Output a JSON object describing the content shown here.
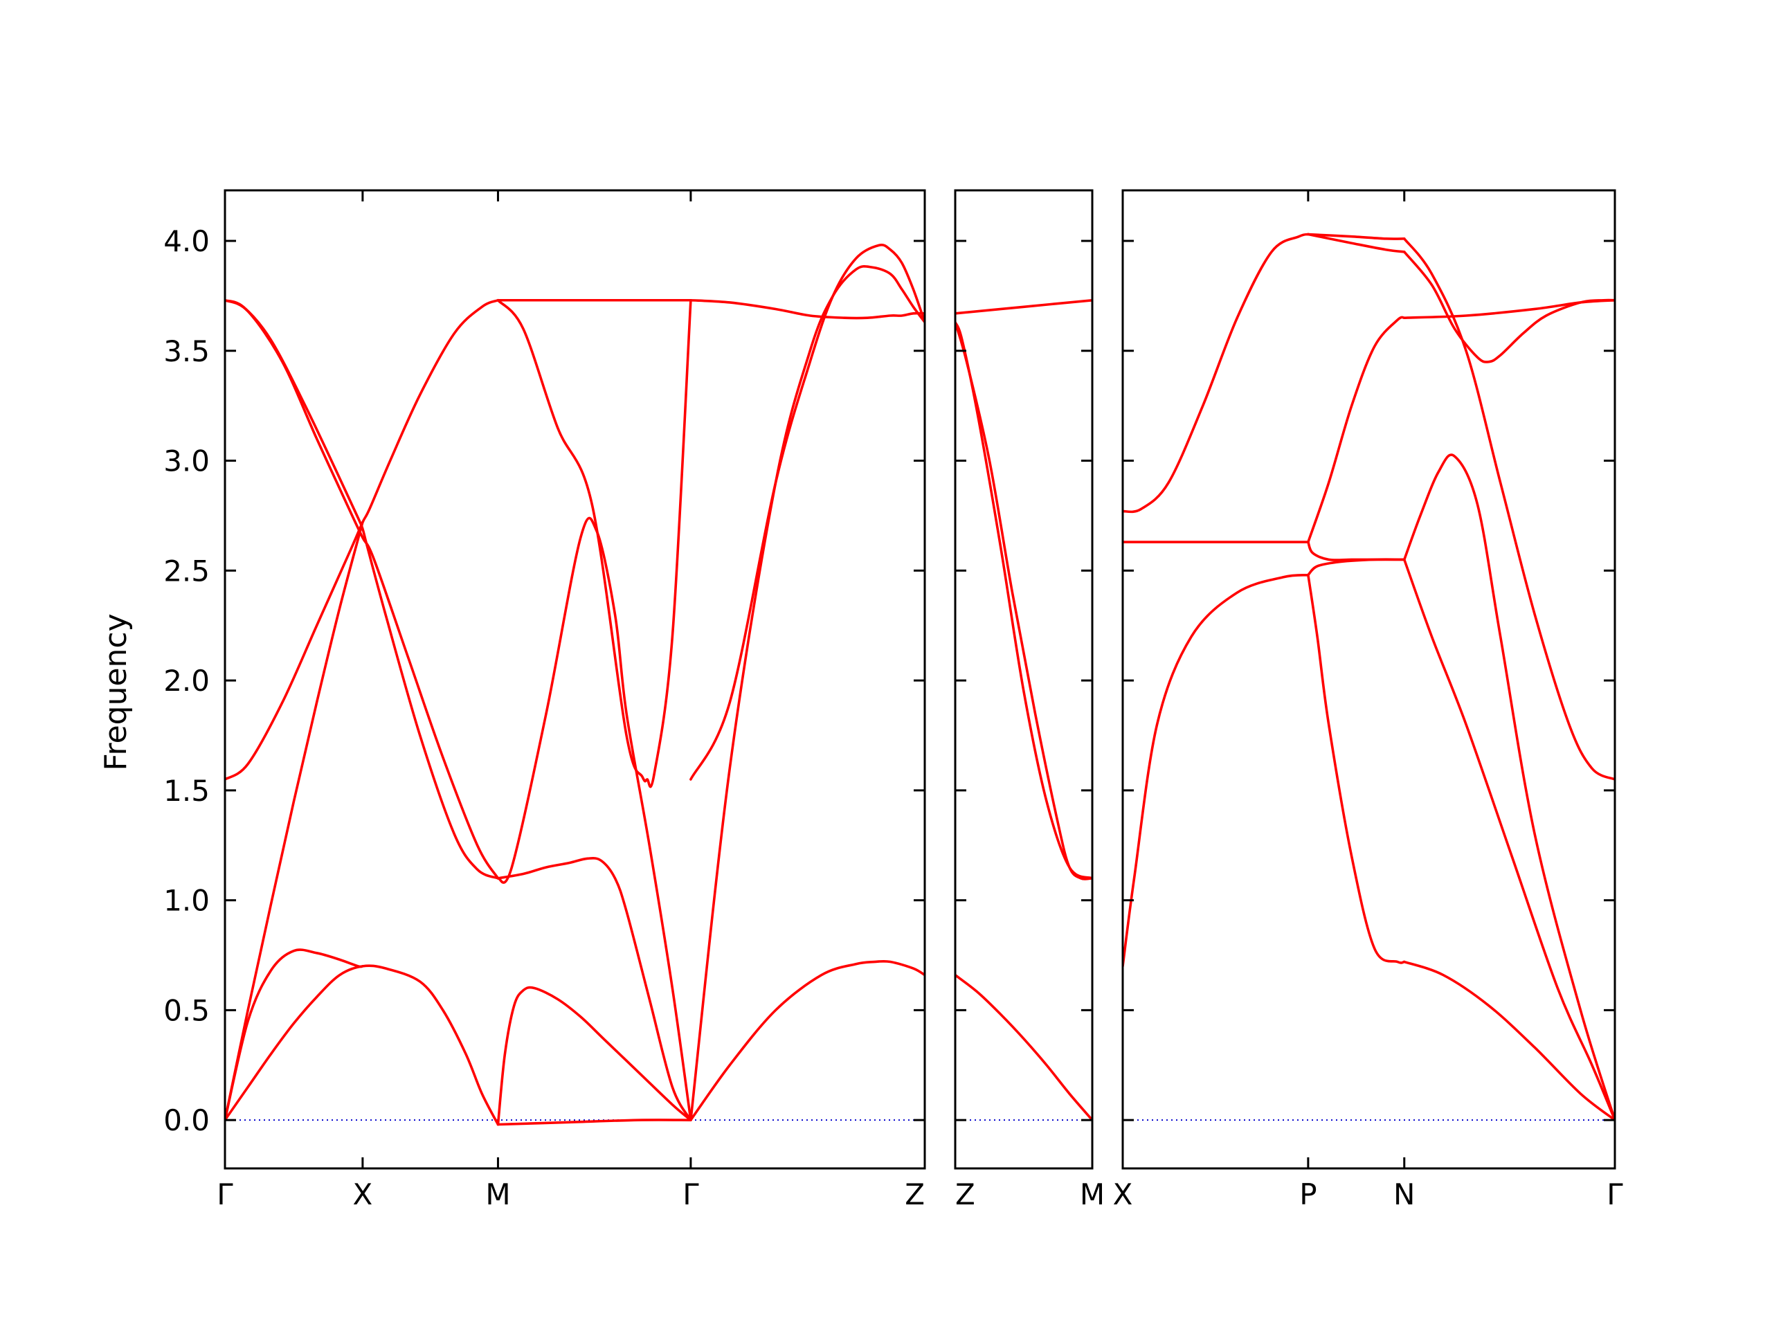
{
  "chart_data": {
    "type": "line",
    "title": "",
    "ylabel": "Frequency",
    "ylim": [
      -0.22,
      4.23
    ],
    "yticks": [
      0.0,
      0.5,
      1.0,
      1.5,
      2.0,
      2.5,
      3.0,
      3.5,
      4.0
    ],
    "ytick_labels": [
      "0.0",
      "0.5",
      "1.0",
      "1.5",
      "2.0",
      "2.5",
      "3.0",
      "3.5",
      "4.0"
    ],
    "colors": {
      "bands": "#ff0000",
      "zero_line": "#0000cc",
      "frame": "#000000"
    },
    "grid": false,
    "legend": "none",
    "panels": [
      {
        "xlim": [
          0,
          3.05
        ],
        "ticks": [
          {
            "x": 0.0,
            "label": "Γ"
          },
          {
            "x": 0.6,
            "label": "X"
          },
          {
            "x": 1.19,
            "label": "M"
          },
          {
            "x": 2.03,
            "label": "Γ"
          },
          {
            "x": 3.05,
            "label": "Z"
          }
        ],
        "series": [
          {
            "x": [
              0,
              0.08,
              0.2,
              0.35,
              0.5,
              0.58,
              0.6,
              0.62,
              0.7,
              0.85,
              1.0,
              1.1,
              1.19
            ],
            "values": [
              3.73,
              3.7,
              3.55,
              3.25,
              2.92,
              2.74,
              2.69,
              2.61,
              2.3,
              1.75,
              1.3,
              1.14,
              1.1
            ]
          },
          {
            "x": [
              0,
              0.1,
              0.25,
              0.4,
              0.55,
              0.6,
              0.65,
              0.8,
              0.95,
              1.1,
              1.19
            ],
            "values": [
              3.73,
              3.68,
              3.45,
              3.1,
              2.76,
              2.65,
              2.55,
              2.1,
              1.65,
              1.25,
              1.1
            ]
          },
          {
            "x": [
              0,
              0.1,
              0.25,
              0.4,
              0.55,
              0.6,
              0.63,
              0.72,
              0.85,
              1.0,
              1.12,
              1.19
            ],
            "values": [
              1.55,
              1.62,
              1.9,
              2.25,
              2.6,
              2.72,
              2.78,
              3.0,
              3.3,
              3.58,
              3.7,
              3.73
            ]
          },
          {
            "x": [
              0,
              0.1,
              0.2,
              0.3,
              0.4,
              0.5,
              0.6
            ],
            "values": [
              0.0,
              0.5,
              0.98,
              1.45,
              1.9,
              2.33,
              2.72
            ]
          },
          {
            "x": [
              0,
              0.1,
              0.2,
              0.3,
              0.4,
              0.5,
              0.58,
              0.6
            ],
            "values": [
              0.0,
              0.45,
              0.68,
              0.77,
              0.76,
              0.73,
              0.7,
              0.7
            ]
          },
          {
            "x": [
              0,
              0.1,
              0.2,
              0.3,
              0.4,
              0.5,
              0.6,
              0.7,
              0.85,
              0.95,
              1.05,
              1.12,
              1.19
            ],
            "values": [
              0.0,
              0.15,
              0.3,
              0.44,
              0.56,
              0.66,
              0.7,
              0.69,
              0.63,
              0.5,
              0.3,
              0.12,
              -0.02
            ]
          },
          {
            "x": [
              1.19,
              1.3,
              1.45,
              1.6,
              1.75,
              1.82,
              1.84,
              1.87,
              1.95,
              2.03
            ],
            "values": [
              3.73,
              3.6,
              3.15,
              2.8,
              1.75,
              1.56,
              1.55,
              1.57,
              2.2,
              3.73
            ]
          },
          {
            "x": [
              1.19,
              1.25,
              1.4,
              1.55,
              1.62,
              1.7,
              1.75,
              1.85,
              1.95,
              2.03
            ],
            "values": [
              1.1,
              1.15,
              1.85,
              2.65,
              2.68,
              2.3,
              1.85,
              1.25,
              0.6,
              0.0
            ]
          },
          {
            "x": [
              1.19,
              1.3,
              1.4,
              1.5,
              1.58,
              1.64,
              1.7,
              1.75,
              1.85,
              1.95,
              2.03
            ],
            "values": [
              1.1,
              1.12,
              1.15,
              1.17,
              1.19,
              1.18,
              1.1,
              0.95,
              0.55,
              0.15,
              0.0
            ]
          },
          {
            "x": [
              1.19,
              1.22,
              1.26,
              1.3,
              1.35,
              1.45,
              1.55,
              1.65,
              1.8,
              1.95,
              2.03
            ],
            "values": [
              -0.02,
              0.3,
              0.52,
              0.59,
              0.6,
              0.55,
              0.47,
              0.37,
              0.22,
              0.07,
              0.0
            ]
          },
          {
            "x": [
              1.19,
              1.5,
              1.8,
              2.03
            ],
            "values": [
              -0.02,
              -0.01,
              0.0,
              0.0
            ]
          },
          {
            "x": [
              1.19,
              2.03
            ],
            "values": [
              3.73,
              3.73
            ]
          },
          {
            "x": [
              2.03,
              2.2,
              2.4,
              2.55,
              2.7,
              2.8,
              2.9,
              2.95,
              3.0,
              3.05
            ],
            "values": [
              3.73,
              3.72,
              3.69,
              3.66,
              3.65,
              3.65,
              3.66,
              3.66,
              3.67,
              3.67
            ]
          },
          {
            "x": [
              2.03,
              2.2,
              2.4,
              2.55,
              2.65,
              2.75,
              2.82,
              2.9,
              2.95,
              3.0,
              3.05
            ],
            "values": [
              0.0,
              1.6,
              2.9,
              3.5,
              3.75,
              3.87,
              3.88,
              3.85,
              3.78,
              3.7,
              3.63
            ]
          },
          {
            "x": [
              2.03,
              2.2,
              2.4,
              2.55,
              2.65,
              2.75,
              2.85,
              2.9,
              2.95,
              3.0,
              3.05
            ],
            "values": [
              1.55,
              1.9,
              2.9,
              3.45,
              3.75,
              3.92,
              3.98,
              3.96,
              3.9,
              3.78,
              3.63
            ]
          },
          {
            "x": [
              2.03,
              2.2,
              2.4,
              2.6,
              2.75,
              2.83,
              2.9,
              3.0,
              3.05
            ],
            "values": [
              0.0,
              0.25,
              0.5,
              0.66,
              0.71,
              0.72,
              0.72,
              0.69,
              0.66
            ]
          }
        ]
      },
      {
        "xlim": [
          0,
          0.6
        ],
        "ticks": [
          {
            "x": 0.0,
            "label": "Z"
          },
          {
            "x": 0.6,
            "label": "M"
          }
        ],
        "series": [
          {
            "x": [
              0,
              0.3,
              0.6
            ],
            "values": [
              3.67,
              3.7,
              3.73
            ]
          },
          {
            "x": [
              0,
              0.05,
              0.15,
              0.25,
              0.35,
              0.45,
              0.5,
              0.55,
              0.6
            ],
            "values": [
              3.63,
              3.45,
              3.0,
              2.4,
              1.85,
              1.35,
              1.15,
              1.1,
              1.1
            ]
          },
          {
            "x": [
              0,
              0.03,
              0.1,
              0.2,
              0.3,
              0.4,
              0.5,
              0.6
            ],
            "values": [
              3.63,
              3.55,
              3.2,
              2.6,
              1.95,
              1.45,
              1.15,
              1.1
            ]
          },
          {
            "x": [
              0,
              0.1,
              0.2,
              0.3,
              0.4,
              0.5,
              0.6
            ],
            "values": [
              0.66,
              0.58,
              0.48,
              0.37,
              0.25,
              0.12,
              0.0
            ]
          }
        ]
      },
      {
        "xlim": [
          0,
          2.15
        ],
        "ticks": [
          {
            "x": 0.0,
            "label": "X"
          },
          {
            "x": 0.81,
            "label": "P"
          },
          {
            "x": 1.23,
            "label": "N"
          },
          {
            "x": 2.15,
            "label": "Γ"
          }
        ],
        "series": [
          {
            "x": [
              0,
              0.08,
              0.2,
              0.35,
              0.5,
              0.65,
              0.77,
              0.81
            ],
            "values": [
              2.77,
              2.78,
              2.9,
              3.25,
              3.65,
              3.95,
              4.02,
              4.03
            ]
          },
          {
            "x": [
              0.81,
              1.0,
              1.15,
              1.23
            ],
            "values": [
              4.03,
              4.02,
              4.01,
              4.01
            ]
          },
          {
            "x": [
              0.81,
              1.0,
              1.15,
              1.23
            ],
            "values": [
              4.03,
              3.99,
              3.96,
              3.95
            ]
          },
          {
            "x": [
              0,
              0.4,
              0.81
            ],
            "values": [
              2.63,
              2.63,
              2.63
            ]
          },
          {
            "x": [
              0,
              0.05,
              0.15,
              0.3,
              0.5,
              0.7,
              0.81
            ],
            "values": [
              0.7,
              1.1,
              1.8,
              2.2,
              2.4,
              2.47,
              2.48
            ]
          },
          {
            "x": [
              0.81,
              0.83,
              0.9,
              1.0,
              1.1,
              1.23
            ],
            "values": [
              2.63,
              2.58,
              2.55,
              2.55,
              2.55,
              2.55
            ]
          },
          {
            "x": [
              0.81,
              0.85,
              0.95,
              1.1,
              1.23
            ],
            "values": [
              2.48,
              2.52,
              2.54,
              2.55,
              2.55
            ]
          },
          {
            "x": [
              0.81,
              0.85,
              0.9,
              1.0,
              1.1,
              1.2,
              1.23
            ],
            "values": [
              2.48,
              2.2,
              1.8,
              1.2,
              0.78,
              0.72,
              0.72
            ]
          },
          {
            "x": [
              1.23,
              1.4,
              1.6,
              1.8,
              2.0,
              2.15
            ],
            "values": [
              0.72,
              0.66,
              0.52,
              0.33,
              0.12,
              0.0
            ]
          },
          {
            "x": [
              0.81,
              0.9,
              1.0,
              1.1,
              1.2,
              1.23
            ],
            "values": [
              2.63,
              2.9,
              3.25,
              3.52,
              3.64,
              3.65
            ]
          },
          {
            "x": [
              1.23,
              1.5,
              1.8,
              2.0,
              2.15
            ],
            "values": [
              3.65,
              3.66,
              3.69,
              3.72,
              3.73
            ]
          },
          {
            "x": [
              1.23,
              1.35,
              1.45,
              1.55,
              1.6,
              1.65,
              1.75,
              1.85,
              2.0,
              2.1,
              2.15
            ],
            "values": [
              3.95,
              3.8,
              3.6,
              3.47,
              3.45,
              3.48,
              3.58,
              3.66,
              3.72,
              3.73,
              3.73
            ]
          },
          {
            "x": [
              1.23,
              1.35,
              1.5,
              1.65,
              1.8,
              1.95,
              2.05,
              2.15
            ],
            "values": [
              4.01,
              3.85,
              3.5,
              2.9,
              2.3,
              1.8,
              1.6,
              1.55
            ]
          },
          {
            "x": [
              1.23,
              1.3,
              1.38,
              1.45,
              1.55,
              1.65,
              1.8,
              2.0,
              2.15
            ],
            "values": [
              2.55,
              2.75,
              2.95,
              3.02,
              2.8,
              2.2,
              1.3,
              0.5,
              0.0
            ]
          },
          {
            "x": [
              1.23,
              1.35,
              1.5,
              1.7,
              1.9,
              2.05,
              2.15
            ],
            "values": [
              2.55,
              2.2,
              1.8,
              1.2,
              0.6,
              0.25,
              0.0
            ]
          }
        ]
      }
    ]
  }
}
